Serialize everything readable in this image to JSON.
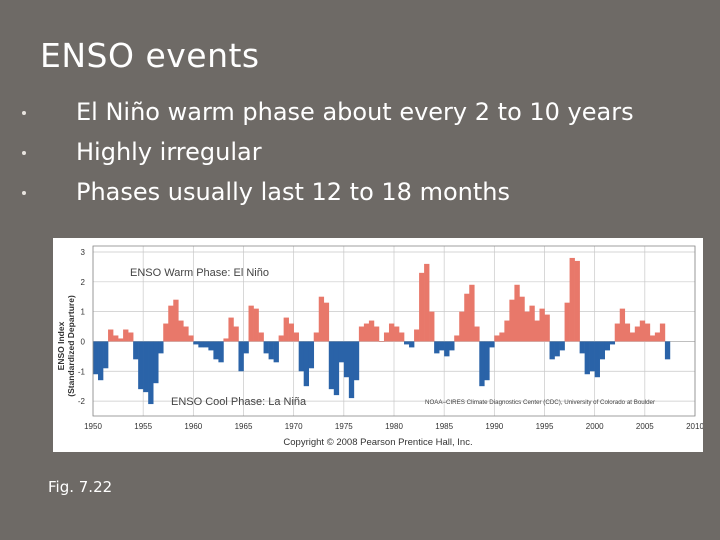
{
  "slide": {
    "title": "ENSO events",
    "bullets": [
      "El Niño warm phase about every 2 to 10 years",
      "Highly irregular",
      "Phases usually last 12 to 18 months"
    ],
    "caption": "Fig. 7.22"
  },
  "chart_data": {
    "type": "area",
    "ylabel_line1": "ENSO Index",
    "ylabel_line2": "(Standardized Departure)",
    "warm_label": "ENSO Warm Phase: El Niño",
    "cool_label": "ENSO Cool Phase: La Niña",
    "source": "NOAA–CIRES Climate Diagnostics Center (CDC), University of Colorado at Boulder",
    "copyright": "Copyright © 2008 Pearson Prentice Hall, Inc.",
    "xlim": [
      1950,
      2010
    ],
    "ylim": [
      -2.5,
      3.2
    ],
    "x_ticks": [
      1950,
      1955,
      1960,
      1965,
      1970,
      1975,
      1980,
      1985,
      1990,
      1995,
      2000,
      2005,
      2010
    ],
    "y_ticks": [
      3,
      2,
      1,
      0,
      -1,
      -2
    ],
    "grid": true,
    "colors": {
      "warm": "#e8786a",
      "cool": "#2a63a8",
      "grid": "#c8c8c8",
      "axis": "#555555"
    },
    "x": [
      1950.0,
      1950.5,
      1951.0,
      1951.5,
      1952.0,
      1952.5,
      1953.0,
      1953.5,
      1954.0,
      1954.5,
      1955.0,
      1955.5,
      1956.0,
      1956.5,
      1957.0,
      1957.5,
      1958.0,
      1958.5,
      1959.0,
      1959.5,
      1960.0,
      1960.5,
      1961.0,
      1961.5,
      1962.0,
      1962.5,
      1963.0,
      1963.5,
      1964.0,
      1964.5,
      1965.0,
      1965.5,
      1966.0,
      1966.5,
      1967.0,
      1967.5,
      1968.0,
      1968.5,
      1969.0,
      1969.5,
      1970.0,
      1970.5,
      1971.0,
      1971.5,
      1972.0,
      1972.5,
      1973.0,
      1973.5,
      1974.0,
      1974.5,
      1975.0,
      1975.5,
      1976.0,
      1976.5,
      1977.0,
      1977.5,
      1978.0,
      1978.5,
      1979.0,
      1979.5,
      1980.0,
      1980.5,
      1981.0,
      1981.5,
      1982.0,
      1982.5,
      1983.0,
      1983.5,
      1984.0,
      1984.5,
      1985.0,
      1985.5,
      1986.0,
      1986.5,
      1987.0,
      1987.5,
      1988.0,
      1988.5,
      1989.0,
      1989.5,
      1990.0,
      1990.5,
      1991.0,
      1991.5,
      1992.0,
      1992.5,
      1993.0,
      1993.5,
      1994.0,
      1994.5,
      1995.0,
      1995.5,
      1996.0,
      1996.5,
      1997.0,
      1997.5,
      1998.0,
      1998.5,
      1999.0,
      1999.5,
      2000.0,
      2000.5,
      2001.0,
      2001.5,
      2002.0,
      2002.5,
      2003.0,
      2003.5,
      2004.0,
      2004.5,
      2005.0,
      2005.5,
      2006.0,
      2006.5,
      2007.0
    ],
    "values": [
      -1.1,
      -1.3,
      -0.9,
      0.4,
      0.2,
      0.1,
      0.4,
      0.3,
      -0.6,
      -1.6,
      -1.7,
      -2.1,
      -1.4,
      -0.4,
      0.6,
      1.2,
      1.4,
      0.7,
      0.5,
      0.2,
      -0.1,
      -0.2,
      -0.2,
      -0.3,
      -0.6,
      -0.7,
      0.1,
      0.8,
      0.5,
      -1.0,
      -0.4,
      1.2,
      1.1,
      0.3,
      -0.4,
      -0.6,
      -0.7,
      0.2,
      0.8,
      0.6,
      0.3,
      -1.0,
      -1.5,
      -0.9,
      0.3,
      1.5,
      1.3,
      -1.6,
      -1.8,
      -0.7,
      -1.2,
      -1.9,
      -1.3,
      0.5,
      0.6,
      0.7,
      0.5,
      0.0,
      0.3,
      0.6,
      0.5,
      0.3,
      -0.1,
      -0.2,
      0.4,
      2.3,
      2.6,
      1.0,
      -0.4,
      -0.3,
      -0.5,
      -0.3,
      0.2,
      1.0,
      1.6,
      1.9,
      0.5,
      -1.5,
      -1.3,
      -0.2,
      0.2,
      0.3,
      0.7,
      1.4,
      1.9,
      1.5,
      1.0,
      1.2,
      0.7,
      1.1,
      0.9,
      -0.6,
      -0.5,
      -0.3,
      1.3,
      2.8,
      2.7,
      -0.4,
      -1.1,
      -1.0,
      -1.2,
      -0.6,
      -0.3,
      -0.1,
      0.6,
      1.1,
      0.6,
      0.3,
      0.5,
      0.7,
      0.6,
      0.2,
      0.3,
      0.6,
      -0.6
    ],
    "x_sample_step": 0.5
  }
}
